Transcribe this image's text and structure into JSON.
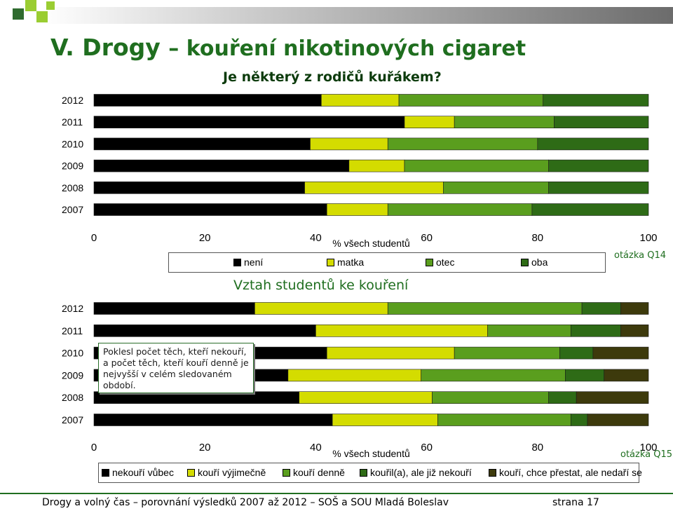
{
  "slide": {
    "title": "V. Drogy",
    "subtitle": "– kouření nikotinových cigaret",
    "footer_left": "Drogy a volný čas – porovnání výsledků 2007 až 2012 – SOŠ a SOU Mladá Boleslav",
    "footer_right": "strana 17"
  },
  "annotation": "Poklesl počet těch, kteří nekouří, a počet těch, kteří kouří denně je nejvyšší v celém sledovaném období.",
  "colors": {
    "title_green": "#1f6e1f",
    "accent_lime": "#9acd32",
    "series1": [
      "#000000",
      "#d4dc00",
      "#5a9e1e",
      "#2e6b16"
    ],
    "series2": [
      "#000000",
      "#d4dc00",
      "#5a9e1e",
      "#2e6b16",
      "#3d3a0c"
    ]
  },
  "chart_data": [
    {
      "type": "bar",
      "orientation": "horizontal",
      "stacked": true,
      "title": "Je některý z rodičů kuřákem?",
      "xlabel": "% všech studentů",
      "note": "otázka Q14",
      "xlim": [
        0,
        100
      ],
      "xticks": [
        "0",
        "20",
        "40",
        "60",
        "80",
        "100"
      ],
      "categories": [
        "2012",
        "2011",
        "2010",
        "2009",
        "2008",
        "2007"
      ],
      "series": [
        {
          "name": "není",
          "values": [
            41,
            56,
            39,
            46,
            38,
            42
          ]
        },
        {
          "name": "matka",
          "values": [
            14,
            9,
            14,
            10,
            25,
            11
          ]
        },
        {
          "name": "otec",
          "values": [
            26,
            18,
            27,
            26,
            19,
            26
          ]
        },
        {
          "name": "oba",
          "values": [
            19,
            17,
            20,
            18,
            18,
            21
          ]
        }
      ]
    },
    {
      "type": "bar",
      "orientation": "horizontal",
      "stacked": true,
      "title": "Vztah studentů ke kouření",
      "xlabel": "% všech studentů",
      "note": "otázka Q15",
      "xlim": [
        0,
        100
      ],
      "xticks": [
        "0",
        "20",
        "40",
        "60",
        "80",
        "100"
      ],
      "categories": [
        "2012",
        "2011",
        "2010",
        "2009",
        "2008",
        "2007"
      ],
      "series": [
        {
          "name": "nekouří vůbec",
          "values": [
            29,
            40,
            42,
            35,
            37,
            43
          ]
        },
        {
          "name": "kouří výjimečně",
          "values": [
            24,
            31,
            23,
            24,
            24,
            19
          ]
        },
        {
          "name": "kouří denně",
          "values": [
            35,
            15,
            19,
            26,
            21,
            24
          ]
        },
        {
          "name": "kouřil(a), ale již nekouří",
          "values": [
            7,
            9,
            6,
            7,
            5,
            3
          ]
        },
        {
          "name": "kouří, chce přestat, ale nedaří se",
          "values": [
            5,
            5,
            10,
            8,
            13,
            11
          ]
        }
      ]
    }
  ]
}
